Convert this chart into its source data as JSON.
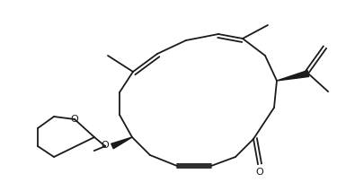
{
  "background": "#ffffff",
  "line_color": "#1a1a1a",
  "line_width": 1.3,
  "figsize": [
    3.75,
    2.13
  ],
  "dpi": 100,
  "xlim": [
    0,
    375
  ],
  "ylim": [
    0,
    213
  ]
}
